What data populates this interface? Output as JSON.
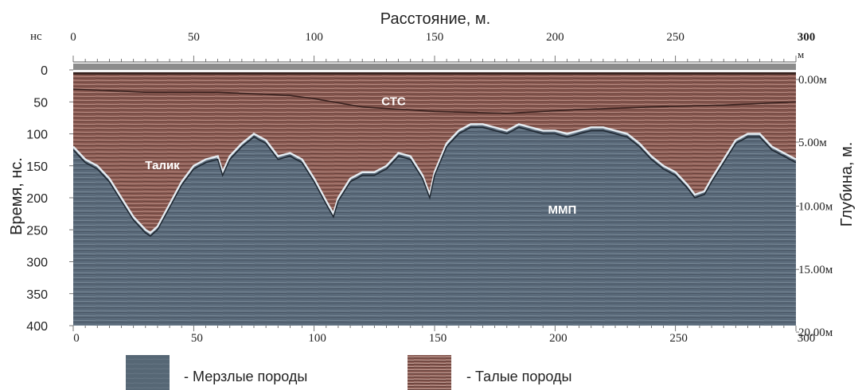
{
  "chart_data": {
    "type": "area",
    "title": "Расстояние, м.",
    "xlabel": "Расстояние, м.",
    "ylabel": "Время, нс.",
    "y2label": "Глубина, м.",
    "top_left_unit": "нс",
    "top_right_unit": "м",
    "xlim": [
      0,
      300
    ],
    "ylim": [
      0,
      400
    ],
    "x_ticks_top": [
      "0",
      "50",
      "100",
      "150",
      "200",
      "250",
      "300"
    ],
    "x_ticks_bottom": [
      "0",
      "50",
      "100",
      "150",
      "200",
      "250",
      "300"
    ],
    "y_ticks": [
      "0",
      "50",
      "100",
      "150",
      "200",
      "250",
      "300",
      "350",
      "400"
    ],
    "depth_ticks": [
      {
        "label": "0.00м",
        "time": 15
      },
      {
        "label": "5.00м",
        "time": 113
      },
      {
        "label": "10.00м",
        "time": 213
      },
      {
        "label": "15.00м",
        "time": 312
      },
      {
        "label": "20.00м",
        "time": 410
      }
    ],
    "annotations": [
      {
        "text": "СТС",
        "x": 133,
        "y": 55
      },
      {
        "text": "Талик",
        "x": 37,
        "y": 155
      },
      {
        "text": "ММП",
        "x": 203,
        "y": 225
      }
    ],
    "layers": [
      {
        "name": "Талые породы",
        "color": "#8a5a52"
      },
      {
        "name": "Мерзлые породы",
        "color": "#5a6a7a"
      }
    ],
    "series": [
      {
        "name": "ММП",
        "x": [
          0,
          5,
          10,
          15,
          20,
          25,
          30,
          32,
          35,
          40,
          45,
          50,
          55,
          60,
          62,
          65,
          70,
          75,
          80,
          85,
          90,
          95,
          100,
          105,
          108,
          110,
          115,
          120,
          125,
          130,
          135,
          140,
          145,
          148,
          150,
          155,
          160,
          165,
          170,
          175,
          180,
          185,
          190,
          195,
          200,
          205,
          210,
          215,
          220,
          225,
          230,
          235,
          240,
          245,
          250,
          255,
          258,
          262,
          265,
          270,
          275,
          280,
          285,
          290,
          295,
          300
        ],
        "y": [
          120,
          140,
          150,
          170,
          200,
          230,
          250,
          255,
          245,
          210,
          175,
          150,
          140,
          135,
          160,
          135,
          115,
          100,
          110,
          135,
          130,
          140,
          170,
          205,
          225,
          200,
          170,
          160,
          160,
          150,
          130,
          135,
          165,
          195,
          160,
          115,
          95,
          85,
          85,
          90,
          95,
          85,
          90,
          95,
          95,
          100,
          95,
          90,
          90,
          95,
          100,
          115,
          135,
          150,
          160,
          180,
          195,
          190,
          170,
          140,
          110,
          100,
          100,
          120,
          130,
          140
        ]
      },
      {
        "name": "СТС",
        "x": [
          0,
          30,
          60,
          90,
          100,
          120,
          150,
          180,
          210,
          240,
          270,
          300
        ],
        "y": [
          30,
          35,
          35,
          40,
          45,
          58,
          65,
          68,
          62,
          58,
          55,
          50
        ]
      }
    ]
  },
  "legend": {
    "frozen_label": "- Мерзлые породы",
    "thawed_label": "- Талые породы"
  }
}
